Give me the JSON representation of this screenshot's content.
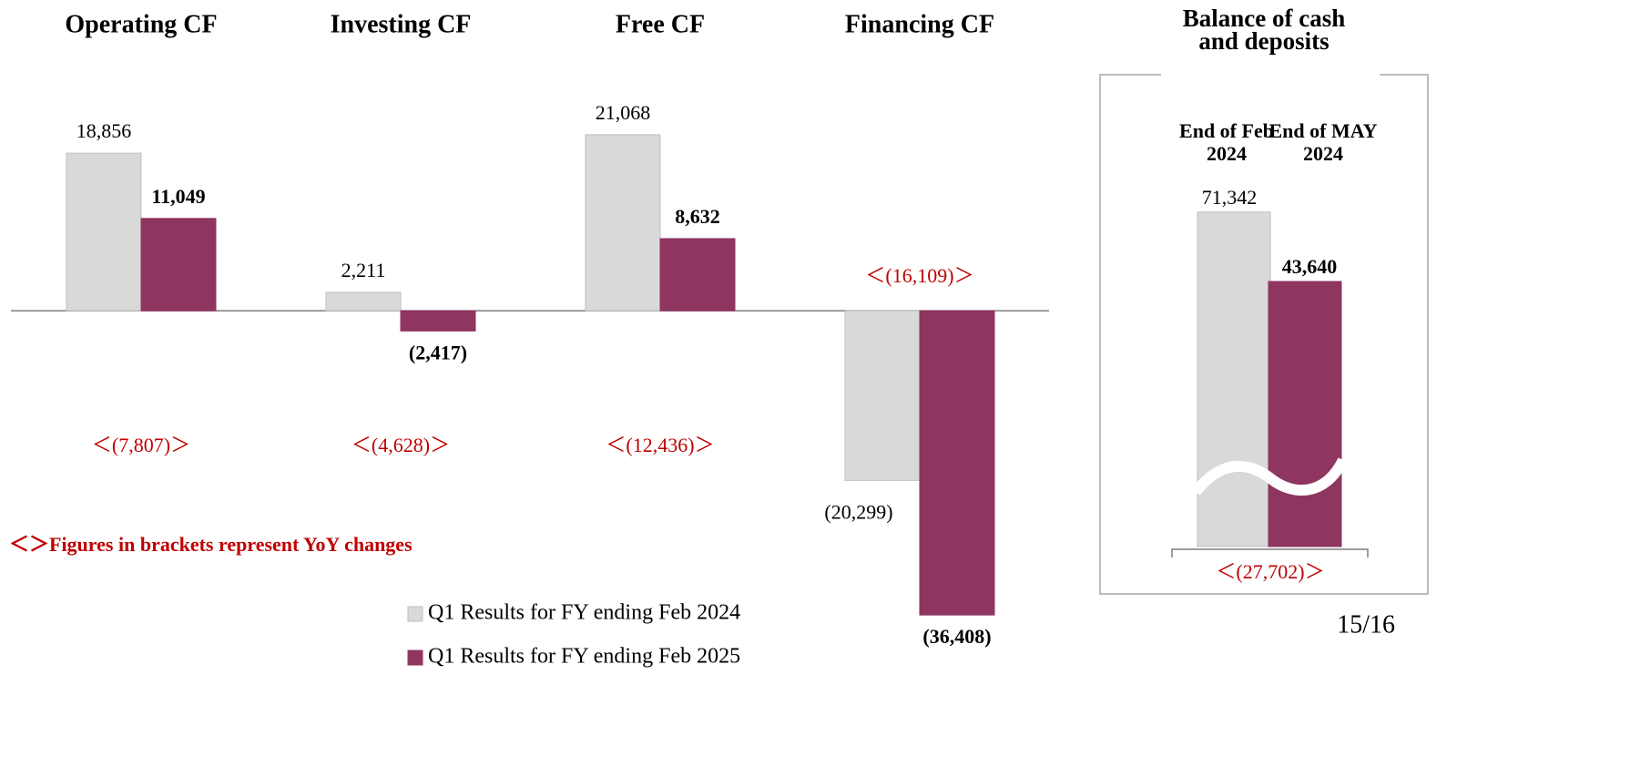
{
  "chart_data": [
    {
      "type": "bar",
      "categories": [
        "Operating CF",
        "Investing CF",
        "Free CF",
        "Financing CF"
      ],
      "series": [
        {
          "name": "Q1 Results for FY ending Feb 2024",
          "color": "#d9d9d9",
          "values": [
            18856,
            2211,
            21068,
            -20299
          ],
          "value_labels": [
            "18,856",
            "2,211",
            "21,068",
            "(20,299)"
          ]
        },
        {
          "name": "Q1 Results for FY ending Feb 2025",
          "color": "#8e3560",
          "values": [
            11049,
            -2417,
            8632,
            -36408
          ],
          "value_labels": [
            "11,049",
            "(2,417)",
            "8,632",
            "(36,408)"
          ]
        }
      ],
      "yoy_labels": [
        "＜(7,807)＞",
        "＜(4,628)＞",
        "＜(12,436)＞",
        "＜(16,109)＞"
      ],
      "note": "＜＞Figures in brackets represent YoY changes",
      "ylim": [
        -54600,
        37190
      ]
    },
    {
      "type": "bar",
      "title": "Balance of cash and deposits",
      "categories": [
        "End of Feb 2024",
        "End of MAY 2024"
      ],
      "values": [
        71342,
        43640
      ],
      "value_labels": [
        "71,342",
        "43,640"
      ],
      "colors": [
        "#d9d9d9",
        "#8e3560"
      ],
      "yoy_label": "＜(27,702)＞",
      "ylim": [
        20000,
        80000
      ],
      "broken_axis": true
    }
  ],
  "page_number": "15/16"
}
